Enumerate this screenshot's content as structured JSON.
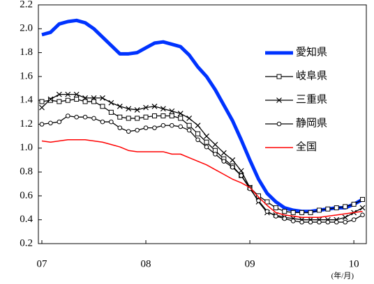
{
  "chart_data": {
    "type": "line",
    "categories": [
      "07",
      null,
      null,
      null,
      null,
      null,
      null,
      null,
      null,
      null,
      null,
      null,
      "08",
      null,
      null,
      null,
      null,
      null,
      null,
      null,
      null,
      null,
      null,
      null,
      "09",
      null,
      null,
      null,
      null,
      null,
      null,
      null,
      null,
      null,
      null,
      null,
      "10",
      null
    ],
    "x_label": "(年/月)",
    "ylim": [
      0.2,
      2.2
    ],
    "yticks": [
      0.2,
      0.4,
      0.6,
      0.8,
      {
        "value": 1.0,
        "label": "1.0"
      },
      1.2,
      1.4,
      1.6,
      1.8,
      {
        "value": 2.0,
        "label": "2.0"
      },
      2.2
    ],
    "series": [
      {
        "name": "愛知県",
        "color": "#0033ff",
        "marker": "none",
        "width": 5,
        "values": [
          1.95,
          1.97,
          2.04,
          2.06,
          2.07,
          2.05,
          2.0,
          1.93,
          1.86,
          1.79,
          1.79,
          1.8,
          1.84,
          1.88,
          1.89,
          1.87,
          1.85,
          1.78,
          1.68,
          1.6,
          1.49,
          1.36,
          1.23,
          1.07,
          0.9,
          0.74,
          0.62,
          0.55,
          0.5,
          0.48,
          0.47,
          0.47,
          0.48,
          0.49,
          0.5,
          0.5,
          0.53,
          0.57
        ]
      },
      {
        "name": "岐阜県",
        "color": "#000000",
        "marker": "square",
        "width": 1.3,
        "values": [
          1.39,
          1.4,
          1.39,
          1.4,
          1.41,
          1.39,
          1.39,
          1.35,
          1.3,
          1.26,
          1.25,
          1.25,
          1.26,
          1.27,
          1.27,
          1.27,
          1.25,
          1.19,
          1.12,
          1.05,
          0.98,
          0.91,
          0.85,
          0.77,
          0.67,
          0.6,
          0.55,
          0.5,
          0.47,
          0.46,
          0.46,
          0.46,
          0.48,
          0.49,
          0.5,
          0.51,
          0.53,
          0.57
        ]
      },
      {
        "name": "三重県",
        "color": "#000000",
        "marker": "cross",
        "width": 1.3,
        "values": [
          1.34,
          1.41,
          1.45,
          1.45,
          1.45,
          1.42,
          1.42,
          1.42,
          1.38,
          1.35,
          1.33,
          1.32,
          1.34,
          1.35,
          1.33,
          1.31,
          1.29,
          1.25,
          1.19,
          1.1,
          1.03,
          0.96,
          0.9,
          0.81,
          0.67,
          0.55,
          0.46,
          0.44,
          0.42,
          0.41,
          0.4,
          0.4,
          0.4,
          0.4,
          0.4,
          0.42,
          0.46,
          0.5
        ]
      },
      {
        "name": "静岡県",
        "color": "#000000",
        "marker": "circle",
        "width": 1.3,
        "values": [
          1.2,
          1.21,
          1.22,
          1.27,
          1.26,
          1.26,
          1.25,
          1.22,
          1.22,
          1.17,
          1.14,
          1.15,
          1.17,
          1.17,
          1.19,
          1.19,
          1.18,
          1.15,
          1.07,
          1.01,
          0.95,
          0.89,
          0.84,
          0.77,
          0.66,
          0.56,
          0.47,
          0.43,
          0.41,
          0.39,
          0.38,
          0.38,
          0.38,
          0.38,
          0.38,
          0.38,
          0.4,
          0.44
        ]
      },
      {
        "name": "全国",
        "color": "#ff0000",
        "marker": "none",
        "width": 1.5,
        "values": [
          1.06,
          1.05,
          1.06,
          1.07,
          1.07,
          1.07,
          1.06,
          1.05,
          1.03,
          1.01,
          0.98,
          0.97,
          0.97,
          0.97,
          0.97,
          0.95,
          0.95,
          0.92,
          0.89,
          0.86,
          0.82,
          0.78,
          0.74,
          0.71,
          0.67,
          0.59,
          0.52,
          0.46,
          0.44,
          0.43,
          0.42,
          0.42,
          0.42,
          0.43,
          0.44,
          0.45,
          0.46,
          0.47
        ]
      }
    ]
  }
}
